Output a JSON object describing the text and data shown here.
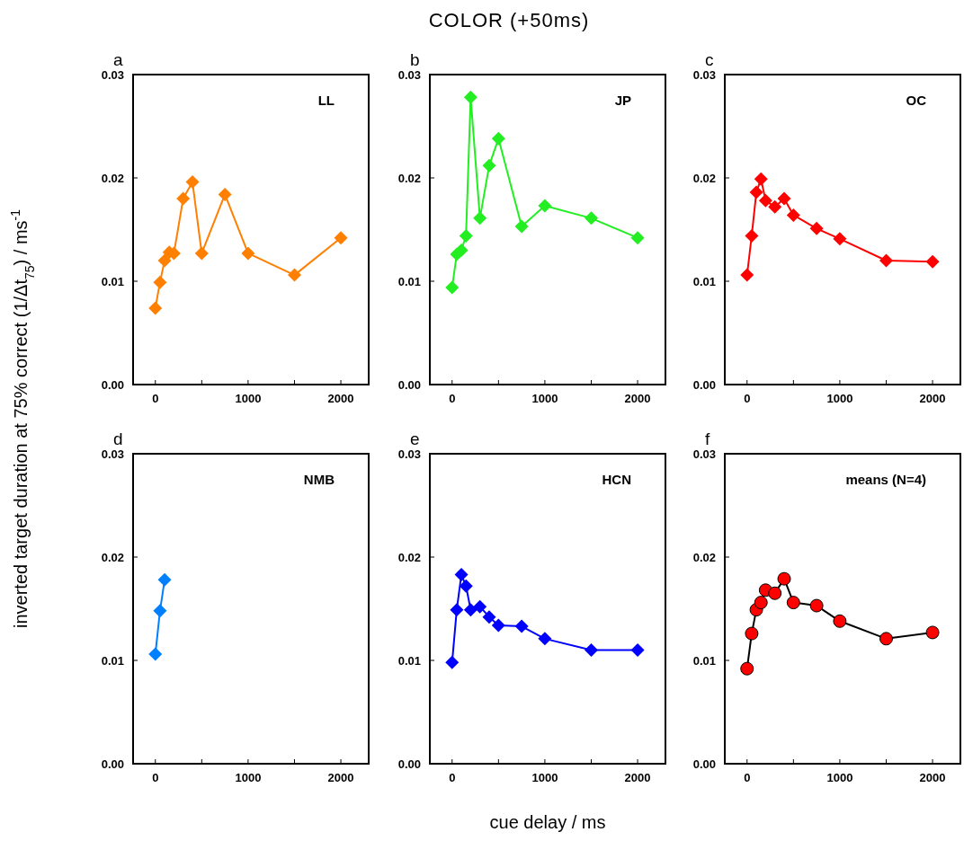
{
  "chart_data": [
    {
      "type": "line",
      "title": "a",
      "annotations": [
        "LL",
        "COLOR (+50ms)"
      ],
      "ylabel": "inverted target duration at 75% correct (1/Δt$_{75}$) / ms$^{-1}$",
      "marker": "diamond",
      "line_style": "solid",
      "xlim": [
        -240,
        2300
      ],
      "ylim": [
        0,
        0.03
      ],
      "xticks": [
        {
          "value": 0,
          "label": "0"
        },
        {
          "value": 500,
          "label": null
        },
        {
          "value": 1000,
          "label": "1000"
        },
        {
          "value": 1500,
          "label": null
        },
        {
          "value": 2000,
          "label": "2000"
        }
      ],
      "yticks": [
        {
          "value": 0,
          "label": "0.00"
        },
        {
          "value": 0.01,
          "label": "0.01"
        },
        {
          "value": 0.02,
          "label": "0.02"
        },
        {
          "value": 0.03,
          "label": "0.03"
        }
      ],
      "series": [
        {
          "color": "#ff7f00",
          "x": [
            0,
            50,
            100,
            150,
            200,
            300,
            400,
            500,
            750,
            1000,
            1500,
            2000
          ],
          "values": [
            0.0074,
            0.0099,
            0.012,
            0.0128,
            0.0127,
            0.018,
            0.0196,
            0.0127,
            0.0184,
            0.0127,
            0.0106,
            0.0142
          ]
        }
      ]
    },
    {
      "type": "line",
      "title": "b",
      "annotations": [
        "JP"
      ],
      "marker": "diamond",
      "line_style": "solid",
      "xlim": [
        -240,
        2300
      ],
      "ylim": [
        0,
        0.03
      ],
      "xticks": [
        {
          "value": 0,
          "label": "0"
        },
        {
          "value": 500,
          "label": null
        },
        {
          "value": 1000,
          "label": "1000"
        },
        {
          "value": 1500,
          "label": null
        },
        {
          "value": 2000,
          "label": "2000"
        }
      ],
      "yticks": [
        {
          "value": 0,
          "label": "0.00"
        },
        {
          "value": 0.01,
          "label": "0.01"
        },
        {
          "value": 0.02,
          "label": "0.02"
        },
        {
          "value": 0.03,
          "label": "0.03"
        }
      ],
      "series": [
        {
          "color": "#22ee22",
          "x": [
            0,
            50,
            100,
            150,
            200,
            300,
            400,
            500,
            750,
            1000,
            1500,
            2000
          ],
          "values": [
            0.0094,
            0.0126,
            0.013,
            0.0144,
            0.0278,
            0.0161,
            0.0212,
            0.0238,
            0.0153,
            0.0173,
            0.0161,
            0.0142
          ]
        }
      ]
    },
    {
      "type": "line",
      "title": "c",
      "annotations": [
        "OC"
      ],
      "marker": "diamond",
      "line_style": "solid",
      "xlim": [
        -240,
        2300
      ],
      "ylim": [
        0,
        0.03
      ],
      "xticks": [
        {
          "value": 0,
          "label": "0"
        },
        {
          "value": 500,
          "label": null
        },
        {
          "value": 1000,
          "label": "1000"
        },
        {
          "value": 1500,
          "label": null
        },
        {
          "value": 2000,
          "label": "2000"
        }
      ],
      "yticks": [
        {
          "value": 0,
          "label": "0.00"
        },
        {
          "value": 0.01,
          "label": "0.01"
        },
        {
          "value": 0.02,
          "label": "0.02"
        },
        {
          "value": 0.03,
          "label": "0.03"
        }
      ],
      "series": [
        {
          "color": "#ff0000",
          "x": [
            0,
            50,
            100,
            150,
            200,
            300,
            400,
            500,
            750,
            1000,
            1500,
            2000
          ],
          "values": [
            0.0106,
            0.0144,
            0.0186,
            0.0199,
            0.0178,
            0.0172,
            0.018,
            0.0164,
            0.0151,
            0.0141,
            0.012,
            0.0119
          ]
        }
      ]
    },
    {
      "type": "line",
      "title": "d",
      "annotations": [
        "NMB"
      ],
      "marker": "diamond",
      "line_style": "solid",
      "xlim": [
        -240,
        2300
      ],
      "ylim": [
        0,
        0.03
      ],
      "xticks": [
        {
          "value": 0,
          "label": "0"
        },
        {
          "value": 500,
          "label": null
        },
        {
          "value": 1000,
          "label": "1000"
        },
        {
          "value": 1500,
          "label": null
        },
        {
          "value": 2000,
          "label": "2000"
        }
      ],
      "yticks": [
        {
          "value": 0,
          "label": "0.00"
        },
        {
          "value": 0.01,
          "label": "0.01"
        },
        {
          "value": 0.02,
          "label": "0.02"
        },
        {
          "value": 0.03,
          "label": "0.03"
        }
      ],
      "series": [
        {
          "color": "#0080ff",
          "x": [
            0,
            50,
            100
          ],
          "values": [
            0.0106,
            0.0148,
            0.0178
          ]
        }
      ]
    },
    {
      "type": "line",
      "title": "e",
      "annotations": [
        "HCN"
      ],
      "xlabel": "cue delay / ms",
      "marker": "diamond",
      "line_style": "solid",
      "xlim": [
        -240,
        2300
      ],
      "ylim": [
        0,
        0.03
      ],
      "xticks": [
        {
          "value": 0,
          "label": "0"
        },
        {
          "value": 500,
          "label": null
        },
        {
          "value": 1000,
          "label": "1000"
        },
        {
          "value": 1500,
          "label": null
        },
        {
          "value": 2000,
          "label": "2000"
        }
      ],
      "yticks": [
        {
          "value": 0,
          "label": "0.00"
        },
        {
          "value": 0.01,
          "label": "0.01"
        },
        {
          "value": 0.02,
          "label": "0.02"
        },
        {
          "value": 0.03,
          "label": "0.03"
        }
      ],
      "series": [
        {
          "color": "#0000ff",
          "x": [
            0,
            50,
            100,
            150,
            200,
            300,
            400,
            500,
            750,
            1000,
            1500,
            2000
          ],
          "values": [
            0.0098,
            0.0149,
            0.0183,
            0.0172,
            0.0149,
            0.0152,
            0.0142,
            0.0134,
            0.0133,
            0.0121,
            0.011,
            0.011
          ]
        }
      ]
    },
    {
      "type": "line",
      "title": "f",
      "annotations": [
        "means (N=4)"
      ],
      "marker": "circle",
      "line_style": "solid",
      "xlim": [
        -240,
        2300
      ],
      "ylim": [
        0,
        0.03
      ],
      "xticks": [
        {
          "value": 0,
          "label": "0"
        },
        {
          "value": 500,
          "label": null
        },
        {
          "value": 1000,
          "label": "1000"
        },
        {
          "value": 1500,
          "label": null
        },
        {
          "value": 2000,
          "label": "2000"
        }
      ],
      "yticks": [
        {
          "value": 0,
          "label": "0.00"
        },
        {
          "value": 0.01,
          "label": "0.01"
        },
        {
          "value": 0.02,
          "label": "0.02"
        },
        {
          "value": 0.03,
          "label": "0.03"
        }
      ],
      "series": [
        {
          "color": "#ff0000",
          "x": [
            0,
            50,
            100,
            150,
            200,
            300,
            400,
            500,
            750,
            1000,
            1500,
            2000
          ],
          "values": [
            0.0092,
            0.0126,
            0.0149,
            0.0156,
            0.0168,
            0.0165,
            0.0179,
            0.0156,
            0.0153,
            0.0138,
            0.0121,
            0.0127
          ]
        }
      ]
    }
  ]
}
